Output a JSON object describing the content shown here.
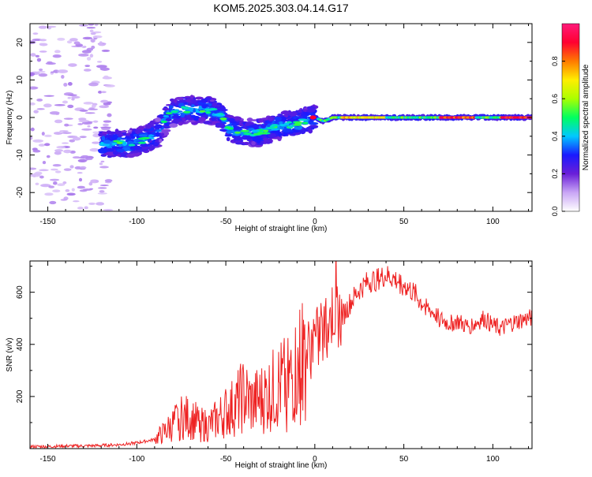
{
  "title": "KOM5.2025.303.04.14.G17",
  "chart_data": [
    {
      "type": "heatmap",
      "name": "spectrogram",
      "xlabel": "Height of straight line (km)",
      "ylabel": "Frequency (Hz)",
      "xlim": [
        -160,
        122
      ],
      "ylim": [
        -25,
        25
      ],
      "xticks": [
        -150,
        -100,
        -50,
        0,
        50,
        100
      ],
      "yticks": [
        -20,
        -10,
        0,
        10,
        20
      ],
      "grid": false,
      "ridge": [
        [
          -115,
          -7
        ],
        [
          -105,
          -7
        ],
        [
          -95,
          -6
        ],
        [
          -88,
          -4
        ],
        [
          -82,
          1
        ],
        [
          -75,
          2
        ],
        [
          -68,
          2
        ],
        [
          -60,
          2
        ],
        [
          -54,
          1
        ],
        [
          -48,
          -3
        ],
        [
          -42,
          -4
        ],
        [
          -36,
          -4
        ],
        [
          -30,
          -4
        ],
        [
          -24,
          -3
        ],
        [
          -18,
          -2
        ],
        [
          -12,
          -2
        ],
        [
          -6,
          -1
        ],
        [
          0,
          0
        ],
        [
          5,
          -1
        ],
        [
          10,
          0
        ],
        [
          25,
          0
        ],
        [
          50,
          0
        ],
        [
          75,
          0
        ],
        [
          100,
          0
        ],
        [
          120,
          0
        ]
      ],
      "colorbar": {
        "label": "Normalized spectral amplitude",
        "range": [
          0,
          1
        ],
        "ticks": [
          "0.0",
          "0.2",
          "0.4",
          "0.6",
          "0.8"
        ],
        "colors": [
          "#ffffff",
          "#c9a6f5",
          "#6a1ed8",
          "#1a1aff",
          "#00c8ff",
          "#00ff60",
          "#aaff00",
          "#ffee00",
          "#ff7a00",
          "#ff0030",
          "#ff1a7a"
        ]
      }
    },
    {
      "type": "line",
      "name": "snr",
      "xlabel": "Height of straight line (km)",
      "ylabel": "SNR (v/v)",
      "xlim": [
        -160,
        122
      ],
      "ylim": [
        0,
        720
      ],
      "xticks": [
        -150,
        -100,
        -50,
        0,
        50,
        100
      ],
      "yticks": [
        200,
        400,
        600
      ],
      "grid": false,
      "color": "#ee2222",
      "x": [
        -160,
        -150,
        -140,
        -130,
        -120,
        -110,
        -100,
        -90,
        -85,
        -80,
        -75,
        -70,
        -65,
        -60,
        -55,
        -50,
        -45,
        -40,
        -35,
        -30,
        -25,
        -20,
        -15,
        -10,
        -5,
        0,
        5,
        10,
        15,
        20,
        25,
        30,
        35,
        40,
        45,
        50,
        55,
        60,
        65,
        70,
        75,
        80,
        85,
        90,
        95,
        100,
        105,
        110,
        115,
        120
      ],
      "values": [
        8,
        8,
        10,
        10,
        12,
        15,
        22,
        35,
        60,
        90,
        120,
        115,
        95,
        85,
        110,
        140,
        160,
        200,
        170,
        190,
        210,
        240,
        250,
        300,
        360,
        410,
        430,
        520,
        500,
        560,
        610,
        640,
        650,
        665,
        650,
        630,
        600,
        560,
        530,
        500,
        480,
        490,
        470,
        480,
        500,
        470,
        460,
        480,
        490,
        500
      ]
    }
  ]
}
